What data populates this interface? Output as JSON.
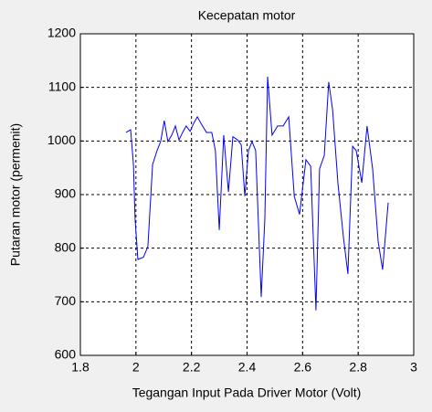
{
  "chart_data": {
    "type": "line",
    "title": "Kecepatan motor",
    "xlabel": "Tegangan Input Pada Driver Motor (Volt)",
    "ylabel": "Putaran motor  (permenit)",
    "x": [
      1.964,
      1.981,
      1.991,
      1.997,
      2.007,
      2.027,
      2.043,
      2.06,
      2.076,
      2.089,
      2.102,
      2.115,
      2.129,
      2.142,
      2.155,
      2.168,
      2.181,
      2.195,
      2.208,
      2.221,
      2.234,
      2.254,
      2.273,
      2.286,
      2.3,
      2.316,
      2.333,
      2.349,
      2.366,
      2.379,
      2.392,
      2.405,
      2.418,
      2.431,
      2.451,
      2.464,
      2.474,
      2.49,
      2.51,
      2.53,
      2.55,
      2.57,
      2.589,
      2.612,
      2.629,
      2.648,
      2.661,
      2.678,
      2.694,
      2.708,
      2.727,
      2.747,
      2.763,
      2.78,
      2.793,
      2.813,
      2.832,
      2.852,
      2.872,
      2.888,
      2.908
    ],
    "series": [
      {
        "color": "#0000ff",
        "values": [
          1016,
          1021,
          956,
          854,
          779,
          783,
          803,
          956,
          982,
          999,
          1038,
          999,
          1011,
          1028,
          1002,
          1016,
          1028,
          1018,
          1033,
          1045,
          1033,
          1016,
          1016,
          982,
          834,
          1011,
          905,
          1008,
          1002,
          993,
          897,
          982,
          999,
          982,
          709,
          854,
          1120,
          1011,
          1028,
          1028,
          1045,
          897,
          863,
          965,
          953,
          684,
          948,
          973,
          1110,
          1058,
          922,
          820,
          752,
          990,
          982,
          922,
          1028,
          948,
          812,
          760,
          885
        ]
      }
    ],
    "xlim": [
      1.8,
      3
    ],
    "xticks": [
      1.8,
      2,
      2.2,
      2.4,
      2.6,
      2.8,
      3
    ],
    "ylim": [
      600,
      1200
    ],
    "yticks": [
      600,
      700,
      800,
      900,
      1000,
      1100,
      1200
    ],
    "grid": true
  }
}
